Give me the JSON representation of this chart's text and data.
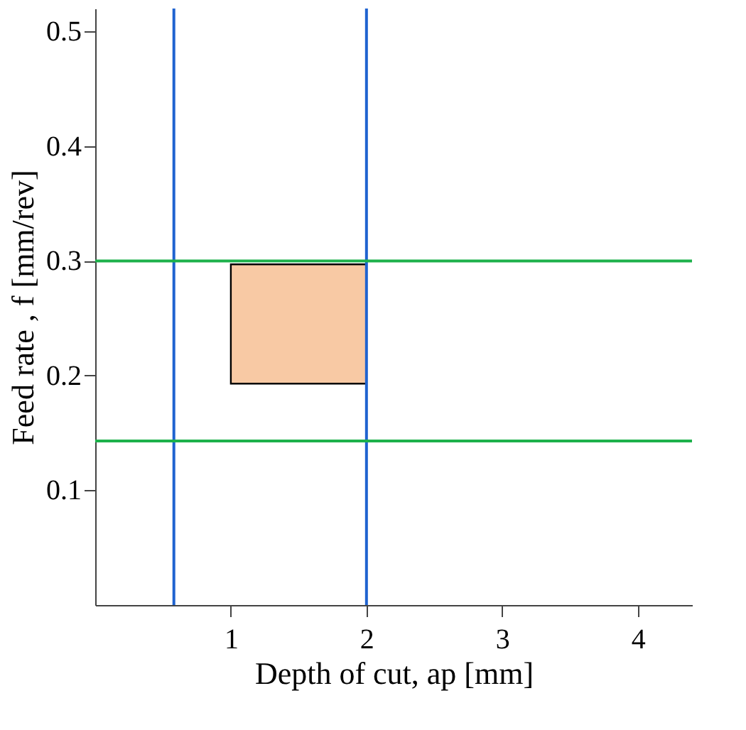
{
  "chart_data": {
    "type": "bar",
    "xlabel": "Depth of cut, ap [mm]",
    "ylabel": "Feed rate , f [mm/rev]",
    "x": [
      1.5
    ],
    "series": [
      {
        "color": "#f8c9a4",
        "values": [
          0.104
        ],
        "base": [
          0.193
        ]
      }
    ],
    "ref_lines": [
      {
        "axis": "x",
        "value": 0.58,
        "color": "#1f63d0"
      },
      {
        "axis": "x",
        "value": 2,
        "color": "#1f63d0"
      },
      {
        "axis": "y",
        "value": 0.3,
        "color": "#1db14b"
      },
      {
        "axis": "y",
        "value": 0.143,
        "color": "#1db14b"
      }
    ],
    "xlim": [
      0,
      4.4
    ],
    "ylim": [
      0,
      0.52
    ],
    "xticks": [
      1,
      2,
      3,
      4
    ],
    "yticks": [
      0.1,
      0.2,
      0.3,
      0.4,
      0.5
    ],
    "grid": false
  }
}
